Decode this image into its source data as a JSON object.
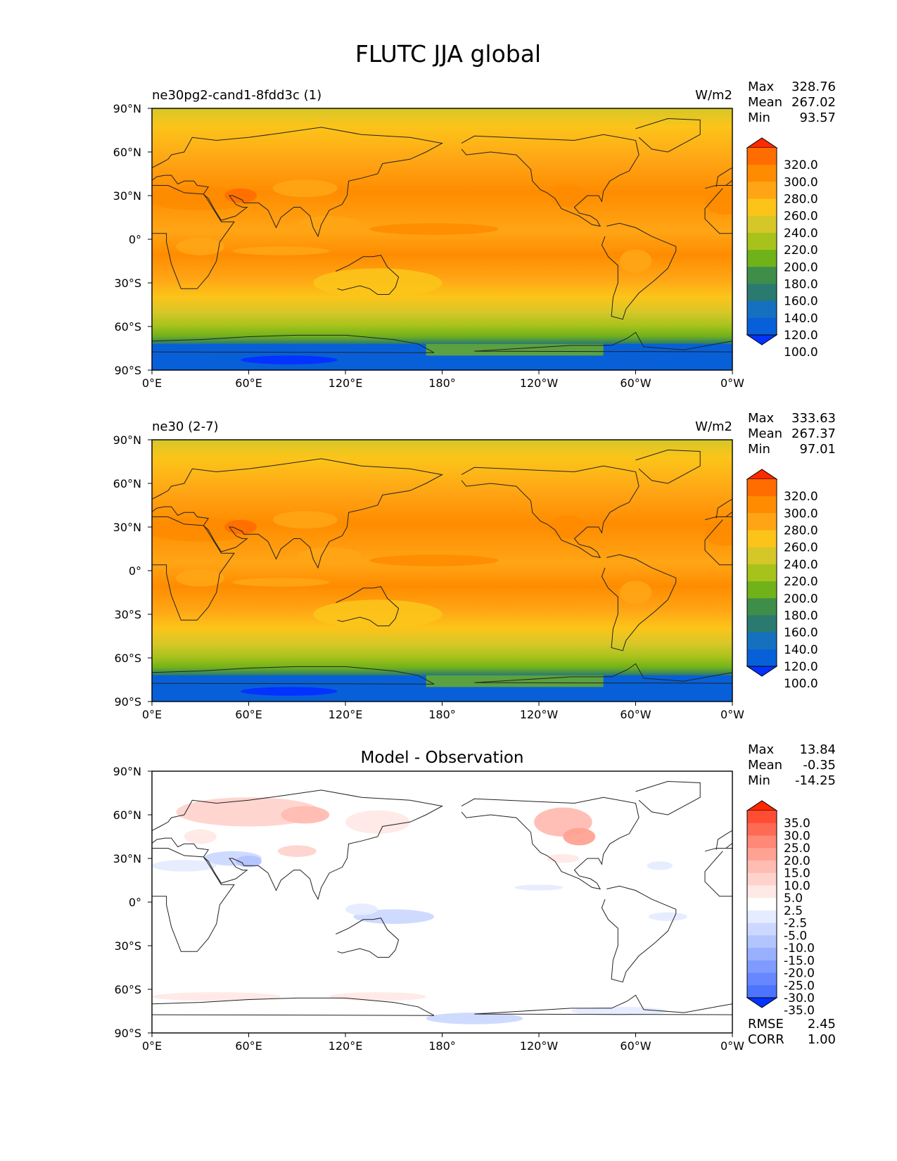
{
  "figure": {
    "title": "FLUTC JJA global"
  },
  "chart_data": [
    {
      "type": "heatmap",
      "left_title": "ne30pg2-cand1-8fdd3c (1)",
      "center_title": "",
      "units": "W/m2",
      "stats": [
        {
          "label": "Max",
          "value": "328.76"
        },
        {
          "label": "Mean",
          "value": "267.02"
        },
        {
          "label": "Min",
          "value": "93.57"
        }
      ],
      "colorbar": {
        "ticks": [
          "320.0",
          "300.0",
          "280.0",
          "260.0",
          "240.0",
          "220.0",
          "200.0",
          "180.0",
          "160.0",
          "140.0",
          "120.0",
          "100.0"
        ],
        "colors": [
          "#ff2a00",
          "#ff6d00",
          "#ff8c00",
          "#ffa515",
          "#fcc419",
          "#d6c728",
          "#a8c21c",
          "#70b21a",
          "#3e8e4a",
          "#2a7a70",
          "#1670c0",
          "#0760d8",
          "#0432ff"
        ]
      },
      "x_ticks": [
        "0°E",
        "60°E",
        "120°E",
        "180°",
        "120°W",
        "60°W",
        "0°W"
      ],
      "y_ticks": [
        "90°N",
        "60°N",
        "30°N",
        "0°",
        "30°S",
        "60°S",
        "90°S"
      ],
      "xlim": [
        0,
        360
      ],
      "ylim": [
        -90,
        90
      ],
      "footer": []
    },
    {
      "type": "heatmap",
      "left_title": "ne30 (2-7)",
      "center_title": "",
      "units": "W/m2",
      "stats": [
        {
          "label": "Max",
          "value": "333.63"
        },
        {
          "label": "Mean",
          "value": "267.37"
        },
        {
          "label": "Min",
          "value": "97.01"
        }
      ],
      "colorbar": {
        "ticks": [
          "320.0",
          "300.0",
          "280.0",
          "260.0",
          "240.0",
          "220.0",
          "200.0",
          "180.0",
          "160.0",
          "140.0",
          "120.0",
          "100.0"
        ],
        "colors": [
          "#ff2a00",
          "#ff6d00",
          "#ff8c00",
          "#ffa515",
          "#fcc419",
          "#d6c728",
          "#a8c21c",
          "#70b21a",
          "#3e8e4a",
          "#2a7a70",
          "#1670c0",
          "#0760d8",
          "#0432ff"
        ]
      },
      "x_ticks": [
        "0°E",
        "60°E",
        "120°E",
        "180°",
        "120°W",
        "60°W",
        "0°W"
      ],
      "y_ticks": [
        "90°N",
        "60°N",
        "30°N",
        "0°",
        "30°S",
        "60°S",
        "90°S"
      ],
      "xlim": [
        0,
        360
      ],
      "ylim": [
        -90,
        90
      ],
      "footer": []
    },
    {
      "type": "heatmap",
      "left_title": "",
      "center_title": "Model - Observation",
      "units": "",
      "stats": [
        {
          "label": "Max",
          "value": "13.84"
        },
        {
          "label": "Mean",
          "value": "-0.35"
        },
        {
          "label": "Min",
          "value": "-14.25"
        }
      ],
      "colorbar": {
        "ticks": [
          "35.0",
          "30.0",
          "25.0",
          "20.0",
          "15.0",
          "10.0",
          "5.0",
          "2.5",
          "-2.5",
          "-5.0",
          "-10.0",
          "-15.0",
          "-20.0",
          "-25.0",
          "-30.0",
          "-35.0"
        ],
        "colors": [
          "#ff2800",
          "#ff4d33",
          "#ff6a55",
          "#ff8877",
          "#ffa294",
          "#ffbcb2",
          "#ffd3cc",
          "#ffe9e6",
          "#ffffff",
          "#e6ecff",
          "#ccd8ff",
          "#b3c4ff",
          "#99b0ff",
          "#7f9bff",
          "#6687ff",
          "#4d73ff",
          "#0433ff"
        ]
      },
      "x_ticks": [
        "0°E",
        "60°E",
        "120°E",
        "180°",
        "120°W",
        "60°W",
        "0°W"
      ],
      "y_ticks": [
        "90°N",
        "60°N",
        "30°N",
        "0°",
        "30°S",
        "60°S",
        "90°S"
      ],
      "xlim": [
        0,
        360
      ],
      "ylim": [
        -90,
        90
      ],
      "footer": [
        {
          "label": "RMSE",
          "value": "2.45"
        },
        {
          "label": "CORR",
          "value": "1.00"
        }
      ]
    }
  ]
}
